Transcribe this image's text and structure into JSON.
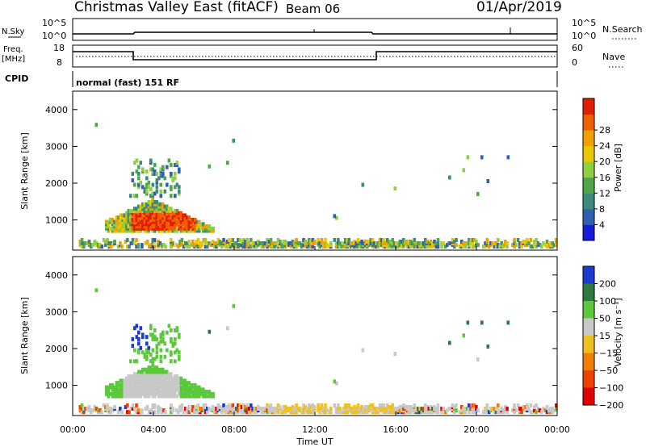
{
  "header": {
    "station": "Christmas Valley East (fitACF)",
    "beam": "Beam 06",
    "date": "01/Apr/2019"
  },
  "strip_labels": {
    "nsky": "N.Sky",
    "nsky_top": "10^5",
    "nsky_bottom": "10^0",
    "nsearch": "N.Search",
    "nsearch_top": "10^5",
    "nsearch_bottom": "10^0",
    "freq": "Freq.",
    "freq_unit": "[MHz]",
    "freq_top": "18",
    "freq_bottom": "8",
    "nave": "Nave",
    "nave_top": "60",
    "nave_bottom": "0",
    "cpid": "CPID",
    "mode": "normal (fast) 151 RF"
  },
  "chart_data": [
    {
      "type": "heatmap",
      "name": "power",
      "ylabel": "Slant Range [km]",
      "xlabel": "",
      "yticks": [
        "1000",
        "2000",
        "3000",
        "4000"
      ],
      "ylim": [
        180,
        4500
      ],
      "colorbar_label": "Power [dB]",
      "colorbar_ticks": [
        "4",
        "8",
        "12",
        "16",
        "20",
        "24",
        "28"
      ],
      "colors": [
        "#1a1adc",
        "#2f5fb0",
        "#3d8a7a",
        "#52a64a",
        "#8fd040",
        "#e8c800",
        "#f0a000",
        "#f06000",
        "#e02000"
      ]
    },
    {
      "type": "heatmap",
      "name": "velocity",
      "ylabel": "Slant Range [km]",
      "xlabel": "Time UT",
      "xticks": [
        "00:00",
        "04:00",
        "08:00",
        "12:00",
        "16:00",
        "20:00",
        "00:00"
      ],
      "yticks": [
        "1000",
        "2000",
        "3000",
        "4000"
      ],
      "ylim": [
        180,
        4500
      ],
      "colorbar_label": "Velocity [m s⁻¹]",
      "colorbar_ticks": [
        "200",
        "100",
        "50",
        "15",
        "−15",
        "−50",
        "−100",
        "−200"
      ],
      "colors": [
        "#1a3ad0",
        "#2c7a40",
        "#5cc83c",
        "#c8c8c8",
        "#f0c020",
        "#f08000",
        "#f04000",
        "#e00000"
      ]
    }
  ]
}
